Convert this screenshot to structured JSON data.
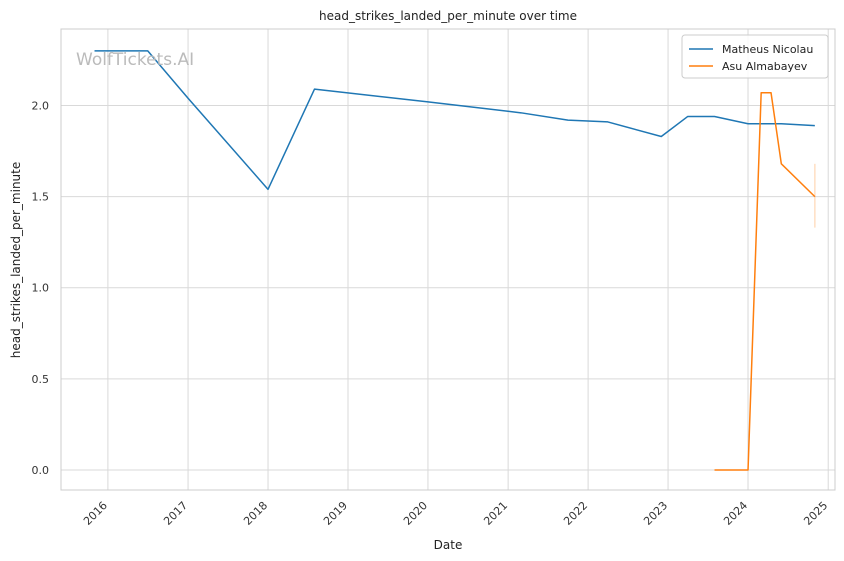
{
  "chart_data": {
    "type": "line",
    "title": "head_strikes_landed_per_minute over time",
    "xlabel": "Date",
    "ylabel": "head_strikes_landed_per_minute",
    "watermark": "WolfTickets.AI",
    "x_axis": "date",
    "xlim": [
      "2015-06-01",
      "2025-02-01"
    ],
    "ylim": [
      -0.11,
      2.42
    ],
    "x_ticks": [
      {
        "date": "2016-01-01",
        "label": "2016"
      },
      {
        "date": "2017-01-01",
        "label": "2017"
      },
      {
        "date": "2018-01-01",
        "label": "2018"
      },
      {
        "date": "2019-01-01",
        "label": "2019"
      },
      {
        "date": "2020-01-01",
        "label": "2020"
      },
      {
        "date": "2021-01-01",
        "label": "2021"
      },
      {
        "date": "2022-01-01",
        "label": "2022"
      },
      {
        "date": "2023-01-01",
        "label": "2023"
      },
      {
        "date": "2024-01-01",
        "label": "2024"
      },
      {
        "date": "2025-01-01",
        "label": "2025"
      }
    ],
    "y_ticks": [
      {
        "value": 0.0,
        "label": "0.0"
      },
      {
        "value": 0.5,
        "label": "0.5"
      },
      {
        "value": 1.0,
        "label": "1.0"
      },
      {
        "value": 1.5,
        "label": "1.5"
      },
      {
        "value": 2.0,
        "label": "2.0"
      }
    ],
    "grid": true,
    "legend_position": "top-right",
    "series": [
      {
        "name": "Matheus Nicolau",
        "color": "#1f77b4",
        "points": [
          {
            "x": "2015-11-01",
            "y": 2.3
          },
          {
            "x": "2016-07-01",
            "y": 2.3
          },
          {
            "x": "2017-01-01",
            "y": 2.04
          },
          {
            "x": "2018-01-01",
            "y": 1.54
          },
          {
            "x": "2018-08-01",
            "y": 2.09
          },
          {
            "x": "2020-01-01",
            "y": 2.02
          },
          {
            "x": "2021-03-01",
            "y": 1.96
          },
          {
            "x": "2021-10-01",
            "y": 1.92
          },
          {
            "x": "2022-04-01",
            "y": 1.91
          },
          {
            "x": "2022-12-01",
            "y": 1.83
          },
          {
            "x": "2023-04-01",
            "y": 1.94
          },
          {
            "x": "2023-08-01",
            "y": 1.94
          },
          {
            "x": "2024-01-01",
            "y": 1.9
          },
          {
            "x": "2024-06-01",
            "y": 1.9
          },
          {
            "x": "2024-11-01",
            "y": 1.89
          }
        ]
      },
      {
        "name": "Asu Almabayev",
        "color": "#ff7f0e",
        "points": [
          {
            "x": "2023-08-01",
            "y": 0.0
          },
          {
            "x": "2024-01-01",
            "y": 0.0
          },
          {
            "x": "2024-03-01",
            "y": 2.07
          },
          {
            "x": "2024-04-15",
            "y": 2.07
          },
          {
            "x": "2024-06-01",
            "y": 1.68
          },
          {
            "x": "2024-11-01",
            "y": 1.5
          }
        ],
        "band": {
          "x": "2024-11-01",
          "y_low": 1.33,
          "y_high": 1.68
        }
      }
    ]
  }
}
